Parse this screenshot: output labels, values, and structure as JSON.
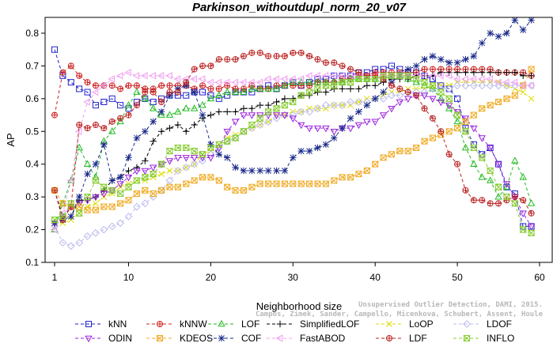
{
  "chart_data": {
    "type": "line",
    "title": "Parkinson_withoutdupl_norm_20_v07",
    "xlabel": "Neighborhood size",
    "ylabel": "AP",
    "xlim": [
      1,
      60
    ],
    "ylim": [
      0.1,
      0.85
    ],
    "x_ticks": [
      1,
      10,
      20,
      30,
      40,
      50,
      60
    ],
    "y_ticks": [
      0.1,
      0.2,
      0.3,
      0.4,
      0.5,
      0.6,
      0.7,
      0.8
    ],
    "grid": false,
    "legend_position": "bottom",
    "watermark": [
      "Unsupervised Outlier Detection, DAMI, 2015.",
      "Campos, Zimek, Sander, Campello, Micenkova, Schubert, Assent, Houle"
    ],
    "x": [
      1,
      2,
      3,
      4,
      5,
      6,
      7,
      8,
      9,
      10,
      11,
      12,
      13,
      14,
      15,
      16,
      17,
      18,
      19,
      20,
      21,
      22,
      23,
      24,
      25,
      26,
      27,
      28,
      29,
      30,
      31,
      32,
      33,
      34,
      35,
      36,
      37,
      38,
      39,
      40,
      41,
      42,
      43,
      44,
      45,
      46,
      47,
      48,
      49,
      50,
      51,
      52,
      53,
      54,
      55,
      56,
      57,
      58,
      59
    ],
    "series": [
      {
        "name": "kNN",
        "color": "#2222cc",
        "marker": "square",
        "values": [
          0.75,
          0.67,
          0.65,
          0.63,
          0.62,
          0.58,
          0.59,
          0.6,
          0.58,
          0.57,
          0.59,
          0.6,
          0.59,
          0.6,
          0.61,
          0.61,
          0.61,
          0.62,
          0.62,
          0.61,
          0.6,
          0.61,
          0.62,
          0.62,
          0.62,
          0.63,
          0.64,
          0.63,
          0.64,
          0.65,
          0.64,
          0.65,
          0.66,
          0.66,
          0.67,
          0.67,
          0.67,
          0.68,
          0.68,
          0.69,
          0.69,
          0.7,
          0.69,
          0.68,
          0.68,
          0.67,
          0.66,
          0.64,
          0.63,
          0.6,
          0.51,
          0.46,
          0.43,
          0.45,
          0.4,
          0.33,
          0.31,
          0.21,
          0.21
        ]
      },
      {
        "name": "kNNW",
        "color": "#cc2222",
        "marker": "circle-plus",
        "values": [
          0.55,
          0.68,
          0.7,
          0.67,
          0.65,
          0.64,
          0.64,
          0.64,
          0.63,
          0.64,
          0.64,
          0.63,
          0.63,
          0.64,
          0.64,
          0.64,
          0.64,
          0.63,
          0.64,
          0.63,
          0.63,
          0.64,
          0.63,
          0.63,
          0.64,
          0.63,
          0.63,
          0.64,
          0.64,
          0.64,
          0.64,
          0.64,
          0.65,
          0.65,
          0.65,
          0.66,
          0.66,
          0.67,
          0.67,
          0.68,
          0.68,
          0.68,
          0.68,
          0.68,
          0.68,
          0.69,
          0.69,
          0.69,
          0.69,
          0.69,
          0.69,
          0.69,
          0.69,
          0.69,
          0.68,
          0.68,
          0.68,
          0.68,
          0.67
        ]
      },
      {
        "name": "LOF",
        "color": "#22bb22",
        "marker": "triangle-up",
        "values": [
          0.2,
          0.28,
          0.35,
          0.45,
          0.4,
          0.36,
          0.47,
          0.5,
          0.53,
          0.58,
          0.62,
          0.6,
          0.57,
          0.55,
          0.55,
          0.56,
          0.57,
          0.57,
          0.58,
          0.6,
          0.61,
          0.62,
          0.62,
          0.62,
          0.63,
          0.63,
          0.63,
          0.63,
          0.64,
          0.65,
          0.65,
          0.65,
          0.65,
          0.65,
          0.65,
          0.65,
          0.66,
          0.66,
          0.66,
          0.66,
          0.66,
          0.67,
          0.67,
          0.66,
          0.65,
          0.64,
          0.63,
          0.6,
          0.57,
          0.53,
          0.45,
          0.4,
          0.36,
          0.35,
          0.3,
          0.33,
          0.41,
          0.36,
          0.28
        ]
      },
      {
        "name": "SimplifiedLOF",
        "color": "#000000",
        "marker": "plus",
        "values": [
          0.32,
          0.24,
          0.24,
          0.29,
          0.29,
          0.3,
          0.32,
          0.35,
          0.36,
          0.38,
          0.39,
          0.41,
          0.47,
          0.5,
          0.51,
          0.52,
          0.5,
          0.52,
          0.54,
          0.55,
          0.56,
          0.56,
          0.56,
          0.57,
          0.57,
          0.58,
          0.58,
          0.59,
          0.6,
          0.6,
          0.61,
          0.61,
          0.62,
          0.62,
          0.63,
          0.63,
          0.63,
          0.63,
          0.64,
          0.64,
          0.65,
          0.66,
          0.66,
          0.66,
          0.67,
          0.67,
          0.67,
          0.68,
          0.68,
          0.68,
          0.68,
          0.68,
          0.68,
          0.68,
          0.68,
          0.68,
          0.68,
          0.67,
          0.67
        ]
      },
      {
        "name": "LoOP",
        "color": "#dddd00",
        "marker": "x",
        "values": [
          0.22,
          0.22,
          0.23,
          0.25,
          0.27,
          0.28,
          0.3,
          0.31,
          0.33,
          0.34,
          0.35,
          0.35,
          0.36,
          0.37,
          0.38,
          0.38,
          0.39,
          0.4,
          0.43,
          0.44,
          0.46,
          0.48,
          0.49,
          0.5,
          0.51,
          0.52,
          0.53,
          0.55,
          0.55,
          0.56,
          0.56,
          0.57,
          0.57,
          0.57,
          0.58,
          0.58,
          0.58,
          0.59,
          0.6,
          0.6,
          0.61,
          0.62,
          0.62,
          0.63,
          0.63,
          0.63,
          0.64,
          0.64,
          0.64,
          0.65,
          0.65,
          0.65,
          0.65,
          0.65,
          0.65,
          0.64,
          0.63,
          0.62,
          0.6
        ]
      },
      {
        "name": "LDOF",
        "color": "#bbbbee",
        "marker": "diamond",
        "values": [
          0.21,
          0.16,
          0.15,
          0.16,
          0.18,
          0.19,
          0.2,
          0.21,
          0.22,
          0.24,
          0.27,
          0.28,
          0.3,
          0.32,
          0.35,
          0.38,
          0.39,
          0.4,
          0.41,
          0.43,
          0.45,
          0.47,
          0.48,
          0.5,
          0.51,
          0.52,
          0.53,
          0.54,
          0.55,
          0.55,
          0.56,
          0.56,
          0.57,
          0.58,
          0.58,
          0.58,
          0.59,
          0.59,
          0.59,
          0.6,
          0.6,
          0.61,
          0.61,
          0.62,
          0.62,
          0.62,
          0.63,
          0.63,
          0.63,
          0.64,
          0.64,
          0.64,
          0.64,
          0.64,
          0.64,
          0.64,
          0.64,
          0.64,
          0.64
        ]
      },
      {
        "name": "ODIN",
        "color": "#9922dd",
        "marker": "triangle-down",
        "values": [
          0.22,
          0.24,
          0.27,
          0.28,
          0.29,
          0.3,
          0.31,
          0.32,
          0.34,
          0.36,
          0.38,
          0.38,
          0.39,
          0.4,
          0.41,
          0.42,
          0.42,
          0.42,
          0.42,
          0.42,
          0.45,
          0.5,
          0.53,
          0.55,
          0.55,
          0.55,
          0.55,
          0.55,
          0.55,
          0.54,
          0.52,
          0.51,
          0.51,
          0.51,
          0.5,
          0.51,
          0.51,
          0.52,
          0.53,
          0.53,
          0.55,
          0.57,
          0.59,
          0.6,
          0.61,
          0.61,
          0.6,
          0.59,
          0.58,
          0.56,
          0.54,
          0.51,
          0.48,
          0.45,
          0.4,
          0.34,
          0.3,
          0.25,
          0.21
        ]
      },
      {
        "name": "KDEOS",
        "color": "#f0aa22",
        "marker": "square-x",
        "values": [
          0.32,
          0.28,
          0.27,
          0.27,
          0.26,
          0.26,
          0.27,
          0.27,
          0.28,
          0.29,
          0.31,
          0.32,
          0.31,
          0.32,
          0.33,
          0.33,
          0.34,
          0.35,
          0.36,
          0.36,
          0.35,
          0.33,
          0.32,
          0.32,
          0.33,
          0.34,
          0.34,
          0.34,
          0.34,
          0.34,
          0.34,
          0.34,
          0.34,
          0.34,
          0.35,
          0.36,
          0.36,
          0.37,
          0.38,
          0.4,
          0.42,
          0.43,
          0.44,
          0.44,
          0.45,
          0.47,
          0.48,
          0.49,
          0.5,
          0.51,
          0.53,
          0.55,
          0.57,
          0.58,
          0.59,
          0.6,
          0.61,
          0.64,
          0.69
        ]
      },
      {
        "name": "COF",
        "color": "#1a2a8a",
        "marker": "star",
        "values": [
          0.22,
          0.23,
          0.24,
          0.3,
          0.37,
          0.4,
          0.46,
          0.35,
          0.36,
          0.42,
          0.48,
          0.5,
          0.53,
          0.56,
          0.61,
          0.63,
          0.64,
          0.62,
          0.55,
          0.46,
          0.43,
          0.42,
          0.39,
          0.38,
          0.38,
          0.38,
          0.38,
          0.38,
          0.38,
          0.42,
          0.44,
          0.44,
          0.45,
          0.46,
          0.48,
          0.51,
          0.54,
          0.56,
          0.58,
          0.6,
          0.62,
          0.65,
          0.67,
          0.69,
          0.7,
          0.72,
          0.73,
          0.72,
          0.71,
          0.71,
          0.72,
          0.73,
          0.77,
          0.8,
          0.79,
          0.8,
          0.84,
          0.81,
          0.84
        ]
      },
      {
        "name": "FastABOD",
        "color": "#f0a0f0",
        "marker": "triangle-left",
        "values": [
          0.2,
          0.25,
          0.35,
          0.5,
          0.59,
          0.62,
          0.64,
          0.66,
          0.67,
          0.68,
          0.67,
          0.67,
          0.67,
          0.67,
          0.67,
          0.66,
          0.66,
          0.66,
          0.66,
          0.65,
          0.65,
          0.65,
          0.65,
          0.65,
          0.65,
          0.65,
          0.66,
          0.66,
          0.66,
          0.66,
          0.66,
          0.67,
          0.67,
          0.67,
          0.67,
          0.67,
          0.67,
          0.67,
          0.67,
          0.67,
          0.67,
          0.67,
          0.67,
          0.67,
          0.67,
          0.67,
          0.67,
          0.67,
          0.67,
          0.66,
          0.66,
          0.66,
          0.66,
          0.66,
          0.65,
          0.65,
          0.65,
          0.64,
          0.64
        ]
      },
      {
        "name": "LDF",
        "color": "#bb2222",
        "marker": "circle-plus",
        "values": [
          0.32,
          0.23,
          0.27,
          0.52,
          0.51,
          0.52,
          0.51,
          0.53,
          0.54,
          0.55,
          0.58,
          0.62,
          0.62,
          0.59,
          0.62,
          0.62,
          0.65,
          0.69,
          0.7,
          0.7,
          0.72,
          0.72,
          0.72,
          0.73,
          0.74,
          0.74,
          0.73,
          0.73,
          0.73,
          0.74,
          0.74,
          0.73,
          0.72,
          0.71,
          0.71,
          0.7,
          0.69,
          0.68,
          0.67,
          0.67,
          0.66,
          0.64,
          0.63,
          0.62,
          0.61,
          0.57,
          0.54,
          0.5,
          0.43,
          0.4,
          0.32,
          0.29,
          0.29,
          0.28,
          0.28,
          0.29,
          0.3,
          0.29,
          0.25
        ]
      },
      {
        "name": "INFLO",
        "color": "#88cc33",
        "marker": "hourglass",
        "values": [
          0.23,
          0.24,
          0.28,
          0.25,
          0.3,
          0.35,
          0.33,
          0.32,
          0.31,
          0.33,
          0.35,
          0.36,
          0.37,
          0.4,
          0.44,
          0.45,
          0.45,
          0.44,
          0.43,
          0.45,
          0.46,
          0.47,
          0.48,
          0.5,
          0.52,
          0.54,
          0.56,
          0.57,
          0.58,
          0.59,
          0.61,
          0.62,
          0.63,
          0.64,
          0.64,
          0.65,
          0.65,
          0.66,
          0.66,
          0.66,
          0.67,
          0.67,
          0.67,
          0.67,
          0.66,
          0.65,
          0.64,
          0.62,
          0.6,
          0.55,
          0.5,
          0.45,
          0.42,
          0.38,
          0.33,
          0.3,
          0.28,
          0.2,
          0.19
        ]
      }
    ],
    "legend": {
      "rows": [
        [
          "kNN",
          "kNNW",
          "LOF",
          "SimplifiedLOF",
          "LoOP",
          "LDOF"
        ],
        [
          "ODIN",
          "KDEOS",
          "COF",
          "FastABOD",
          "LDF",
          "INFLO"
        ]
      ]
    }
  }
}
